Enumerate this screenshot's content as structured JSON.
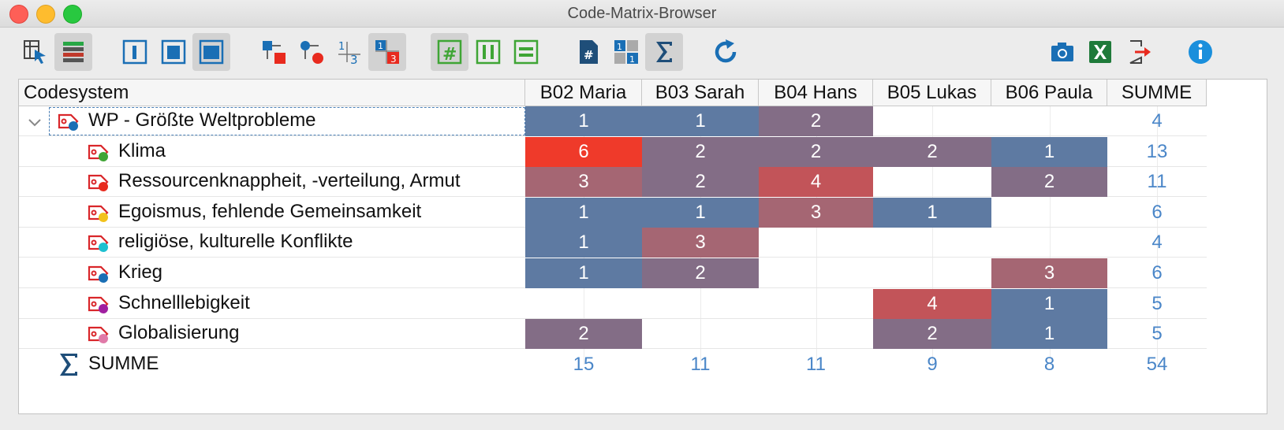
{
  "window": {
    "title": "Code-Matrix-Browser"
  },
  "toolbar": {
    "buttons": [
      {
        "name": "select-tool-icon",
        "active": false
      },
      {
        "name": "color-rows-icon",
        "active": true
      },
      {
        "name": "window-narrow-icon",
        "active": false
      },
      {
        "name": "window-medium-icon",
        "active": false
      },
      {
        "name": "window-wide-icon",
        "active": true
      },
      {
        "name": "node-square-icon",
        "active": false
      },
      {
        "name": "node-circle-icon",
        "active": false
      },
      {
        "name": "numbers-icon",
        "active": false
      },
      {
        "name": "numbers-highlight-icon",
        "active": true
      },
      {
        "name": "hash-grid-icon",
        "active": true
      },
      {
        "name": "columns-icon",
        "active": false
      },
      {
        "name": "rows-icon",
        "active": false
      },
      {
        "name": "document-hash-icon",
        "active": false
      },
      {
        "name": "grid-count-icon",
        "active": false
      },
      {
        "name": "sigma-icon",
        "active": true
      },
      {
        "name": "refresh-icon",
        "active": false
      },
      {
        "name": "camera-icon",
        "active": false
      },
      {
        "name": "excel-icon",
        "active": false
      },
      {
        "name": "export-icon",
        "active": false
      },
      {
        "name": "info-icon",
        "active": false
      }
    ]
  },
  "table": {
    "first_header": "Codesystem",
    "columns": [
      "B02 Maria",
      "B03 Sarah",
      "B04 Hans",
      "B05 Lukas",
      "B06 Paula",
      "SUMME"
    ],
    "rows": [
      {
        "label": "WP - Größte Weltprobleme",
        "dot": "#1a6fb5",
        "level": 0,
        "cells": [
          1,
          1,
          2,
          null,
          null
        ],
        "sum": 4
      },
      {
        "label": "Klima",
        "dot": "#3fa535",
        "level": 1,
        "cells": [
          6,
          2,
          2,
          2,
          1
        ],
        "sum": 13
      },
      {
        "label": "Ressourcenknappheit, -verteilung, Armut",
        "dot": "#e82a1e",
        "level": 1,
        "cells": [
          3,
          2,
          4,
          null,
          2
        ],
        "sum": 11
      },
      {
        "label": "Egoismus, fehlende Gemeinsamkeit",
        "dot": "#f2c21b",
        "level": 1,
        "cells": [
          1,
          1,
          3,
          1,
          null
        ],
        "sum": 6
      },
      {
        "label": "religiöse, kulturelle Konflikte",
        "dot": "#1ec0d0",
        "level": 1,
        "cells": [
          1,
          3,
          null,
          null,
          null
        ],
        "sum": 4
      },
      {
        "label": "Krieg",
        "dot": "#1a6fb5",
        "level": 1,
        "cells": [
          1,
          2,
          null,
          null,
          3
        ],
        "sum": 6
      },
      {
        "label": "Schnelllebigkeit",
        "dot": "#a01fa0",
        "level": 1,
        "cells": [
          null,
          null,
          null,
          4,
          1
        ],
        "sum": 5
      },
      {
        "label": "Globalisierung",
        "dot": "#e07aa8",
        "level": 1,
        "cells": [
          2,
          null,
          null,
          2,
          1
        ],
        "sum": 5
      }
    ],
    "total_label": "SUMME",
    "totals": [
      15,
      11,
      11,
      9,
      8,
      54
    ]
  },
  "colors": {
    "cell_1": "#5e7aa2",
    "cell_2": "#836d86",
    "cell_3": "#a56673",
    "cell_4": "#c25459",
    "cell_6": "#ef3a2a",
    "sum_text": "#4a86c8"
  }
}
